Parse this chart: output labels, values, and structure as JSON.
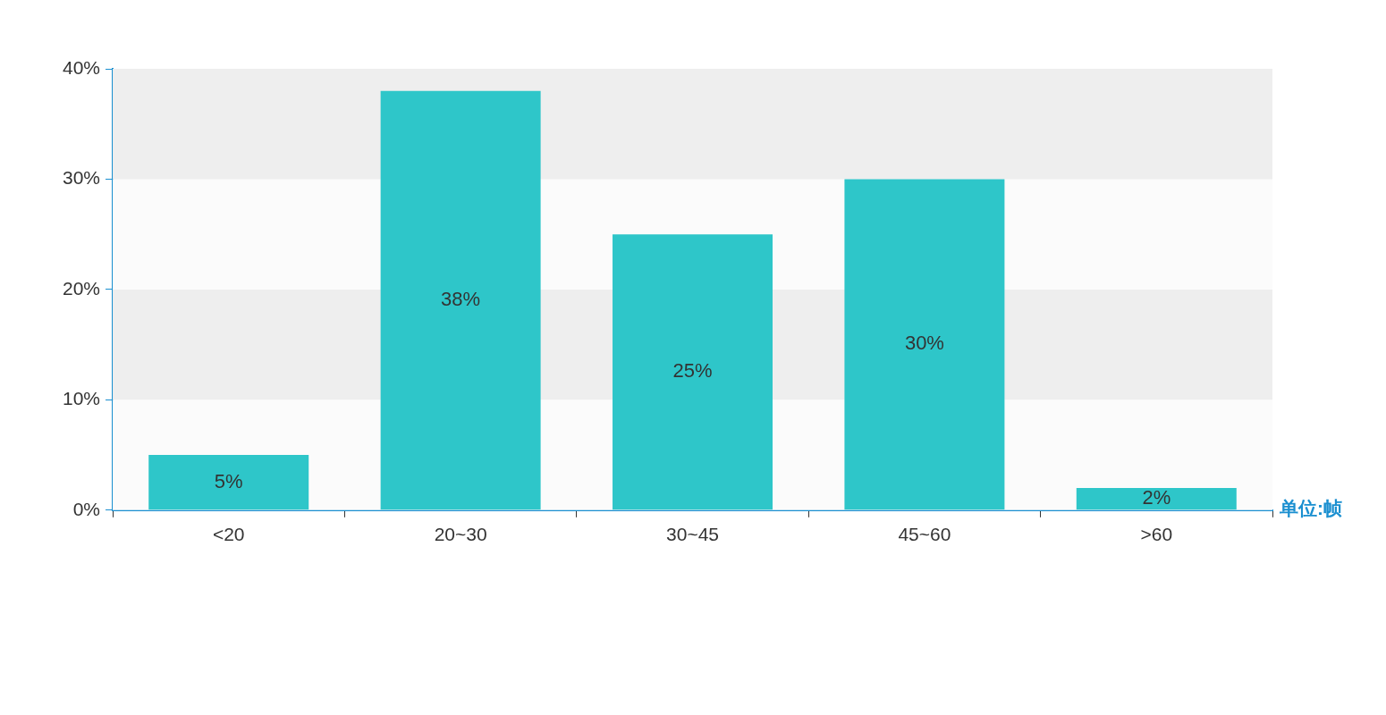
{
  "chart_data": {
    "type": "bar",
    "xlabel": "单位:帧",
    "categories": [
      "<20",
      "20~30",
      "30~45",
      "45~60",
      ">60"
    ],
    "values": [
      5,
      38,
      25,
      30,
      2
    ],
    "value_labels": [
      "5%",
      "38%",
      "25%",
      "30%",
      "2%"
    ],
    "color": "#2ec6c9",
    "ylim": [
      0,
      40
    ],
    "yticks": [
      {
        "value": 0,
        "label": "0%"
      },
      {
        "value": 10,
        "label": "10%"
      },
      {
        "value": 20,
        "label": "20%"
      },
      {
        "value": 30,
        "label": "30%"
      },
      {
        "value": 40,
        "label": "40%"
      }
    ],
    "bands": [
      {
        "axis": "y",
        "from": 0,
        "to": 10,
        "color": "#fbfbfb"
      },
      {
        "axis": "y",
        "from": 10,
        "to": 20,
        "color": "#eeeeee"
      },
      {
        "axis": "y",
        "from": 20,
        "to": 30,
        "color": "#fbfbfb"
      },
      {
        "axis": "y",
        "from": 30,
        "to": 40,
        "color": "#eeeeee"
      }
    ]
  }
}
